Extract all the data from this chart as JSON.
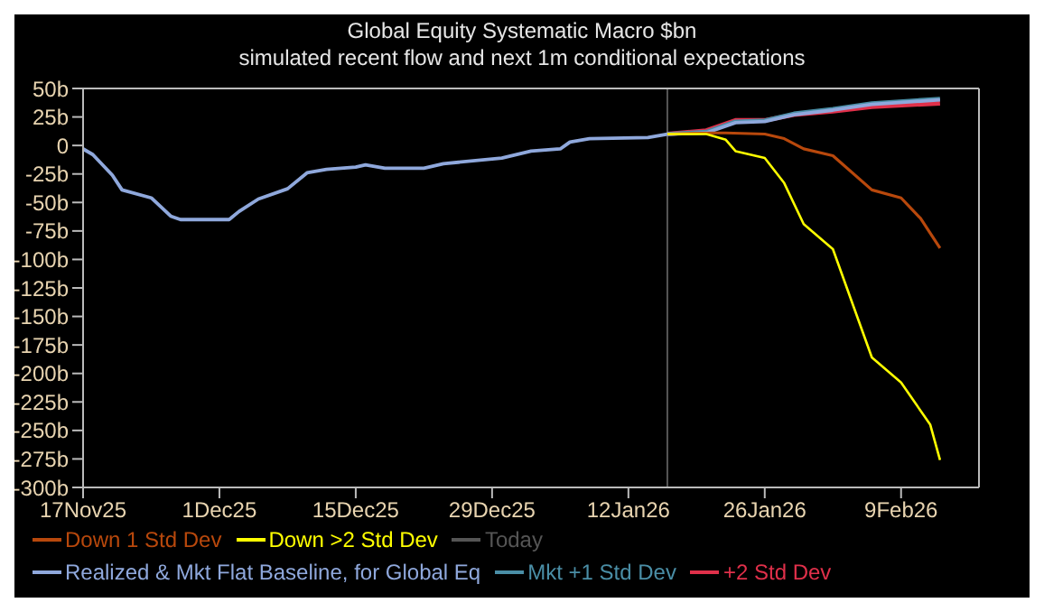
{
  "chart_data": {
    "type": "line",
    "title": "Global Equity Systematic Macro $bn",
    "subtitle": "simulated recent flow and next 1m conditional expectations",
    "series": [
      {
        "name": "Down 1 Std Dev",
        "color": "#b8480c",
        "x": [
          "2026-01-16",
          "2026-01-21",
          "2026-01-22",
          "2026-01-26",
          "2026-01-28",
          "2026-01-30",
          "2026-02-02",
          "2026-02-06",
          "2026-02-09",
          "2026-02-11",
          "2026-02-13"
        ],
        "values": [
          10,
          11,
          11,
          10,
          6,
          -3,
          -9,
          -39,
          -46,
          -64,
          -90
        ]
      },
      {
        "name": "Down >2 Std Dev",
        "color": "#ffff00",
        "x": [
          "2026-01-16",
          "2026-01-20",
          "2026-01-22",
          "2026-01-23",
          "2026-01-26",
          "2026-01-28",
          "2026-01-30",
          "2026-02-02",
          "2026-02-06",
          "2026-02-09",
          "2026-02-12",
          "2026-02-13"
        ],
        "values": [
          10,
          10,
          5,
          -5,
          -11,
          -33,
          -69,
          -91,
          -186,
          -208,
          -245,
          -276
        ]
      },
      {
        "name": "Realized & Mkt Flat Baseline, for Global Eq",
        "color": "#8fa8dc",
        "x": [
          "2025-11-17",
          "2025-11-18",
          "2025-11-20",
          "2025-11-21",
          "2025-11-24",
          "2025-11-26",
          "2025-11-27",
          "2025-12-02",
          "2025-12-03",
          "2025-12-05",
          "2025-12-08",
          "2025-12-10",
          "2025-12-12",
          "2025-12-15",
          "2025-12-16",
          "2025-12-18",
          "2025-12-22",
          "2025-12-24",
          "2025-12-30",
          "2026-01-02",
          "2026-01-05",
          "2026-01-06",
          "2026-01-08",
          "2026-01-14",
          "2026-01-16",
          "2026-01-20",
          "2026-01-23",
          "2026-01-26",
          "2026-01-29",
          "2026-02-02",
          "2026-02-06",
          "2026-02-13"
        ],
        "values": [
          -3,
          -8,
          -26,
          -39,
          -46,
          -62,
          -65,
          -65,
          -58,
          -47,
          -38,
          -24,
          -21,
          -19,
          -17,
          -20,
          -20,
          -16,
          -11,
          -5,
          -3,
          3,
          6,
          7,
          10,
          11,
          20,
          21,
          27,
          31,
          36,
          40
        ]
      },
      {
        "name": "Mkt +1 Std Dev",
        "color": "#4a8ea6",
        "x": [
          "2026-01-16",
          "2026-01-20",
          "2026-01-23",
          "2026-01-26",
          "2026-01-29",
          "2026-02-02",
          "2026-02-06",
          "2026-02-13"
        ],
        "values": [
          10,
          12,
          21,
          22,
          28,
          32,
          37,
          41
        ]
      },
      {
        "name": "+2 Std Dev",
        "color": "#e0304a",
        "x": [
          "2026-01-16",
          "2026-01-20",
          "2026-01-23",
          "2026-01-26",
          "2026-01-29",
          "2026-02-02",
          "2026-02-06",
          "2026-02-13"
        ],
        "values": [
          10,
          13,
          22,
          22,
          27,
          30,
          34,
          37
        ]
      }
    ],
    "ref_lines": [
      {
        "axis": "x",
        "value": "2026-01-16",
        "label": "Today",
        "color": "#555555"
      }
    ],
    "xlim": [
      "2025-11-17",
      "2026-02-17"
    ],
    "xticks": [
      {
        "value": "2025-11-17",
        "label": "17Nov25"
      },
      {
        "value": "2025-12-01",
        "label": "1Dec25"
      },
      {
        "value": "2025-12-15",
        "label": "15Dec25"
      },
      {
        "value": "2025-12-29",
        "label": "29Dec25"
      },
      {
        "value": "2026-01-12",
        "label": "12Jan26"
      },
      {
        "value": "2026-01-26",
        "label": "26Jan26"
      },
      {
        "value": "2026-02-09",
        "label": "9Feb26"
      }
    ],
    "ylim": [
      -300,
      50
    ],
    "yticks": [
      {
        "value": -300,
        "label": "-300b"
      },
      {
        "value": -275,
        "label": "-275b"
      },
      {
        "value": -250,
        "label": "-250b"
      },
      {
        "value": -225,
        "label": "-225b"
      },
      {
        "value": -200,
        "label": "-200b"
      },
      {
        "value": -175,
        "label": "-175b"
      },
      {
        "value": -150,
        "label": "-150b"
      },
      {
        "value": -125,
        "label": "-125b"
      },
      {
        "value": -100,
        "label": "-100b"
      },
      {
        "value": -75,
        "label": "-75b"
      },
      {
        "value": -50,
        "label": "-50b"
      },
      {
        "value": -25,
        "label": "-25b"
      },
      {
        "value": 0,
        "label": "0"
      },
      {
        "value": 25,
        "label": "25b"
      },
      {
        "value": 50,
        "label": "50b"
      }
    ],
    "grid": false,
    "legend": "bottom",
    "marker": "none",
    "line_style": "solid"
  }
}
